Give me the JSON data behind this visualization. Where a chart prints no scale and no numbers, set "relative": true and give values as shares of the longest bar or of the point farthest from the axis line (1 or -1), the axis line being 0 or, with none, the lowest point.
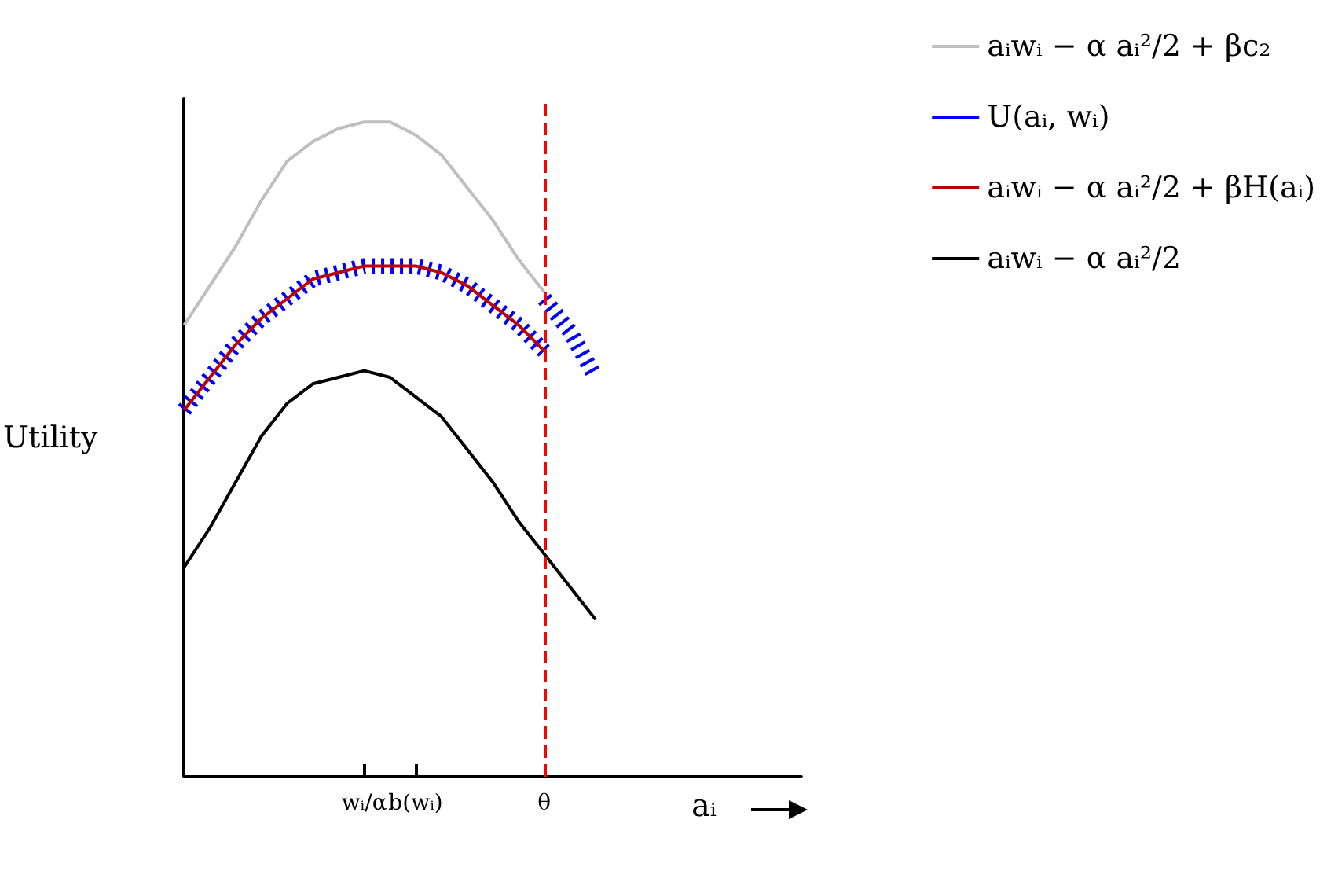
{
  "chart_data": {
    "type": "line",
    "relative": true,
    "ylabel": "Utility",
    "xlabel": "aᵢ",
    "categories": [
      null,
      null,
      null,
      null,
      null,
      null,
      null,
      "wᵢ/α",
      null,
      "b(wᵢ)",
      null,
      null,
      null,
      null,
      "θ",
      null,
      null,
      null,
      null,
      null,
      null,
      null,
      null,
      null,
      null
    ],
    "series": [
      {
        "name": "aᵢwᵢ − α aᵢ²/2 + βc₂",
        "color": "#bfbfbf",
        "values": [
          0.69,
          0.75,
          0.81,
          0.88,
          0.94,
          0.97,
          0.99,
          1,
          1,
          0.98,
          0.95,
          0.9,
          0.85,
          0.79,
          0.74,
          null,
          null,
          null,
          null,
          null,
          null,
          null,
          null,
          null,
          null
        ]
      },
      {
        "name": "U(aᵢ, wᵢ)",
        "color": "#0000ff",
        "line_style": "dashed",
        "values": [
          0.56,
          0.61,
          0.66,
          0.7,
          0.73,
          0.76,
          0.77,
          0.78,
          0.78,
          0.78,
          0.77,
          0.75,
          0.72,
          0.69,
          0.65,
          null,
          null,
          null,
          null,
          null,
          null,
          null,
          null,
          null,
          null
        ]
      },
      {
        "color": "#0000ff",
        "line_style": "dashed",
        "values": [
          null,
          null,
          null,
          null,
          null,
          null,
          null,
          null,
          null,
          null,
          null,
          null,
          null,
          null,
          0.73,
          0.68,
          0.61,
          null,
          null,
          null,
          null,
          null,
          null,
          null,
          null
        ]
      },
      {
        "name": "aᵢwᵢ − α aᵢ²/2 + βH(aᵢ)",
        "color": "#c00000",
        "values": [
          0.56,
          0.61,
          0.66,
          0.7,
          0.73,
          0.76,
          0.77,
          0.78,
          0.78,
          0.78,
          0.77,
          0.75,
          0.72,
          0.69,
          0.65,
          null,
          null,
          null,
          null,
          null,
          null,
          null,
          null,
          null,
          null
        ]
      },
      {
        "name": "aᵢwᵢ − α aᵢ²/2",
        "color": "#000000",
        "values": [
          0.32,
          0.38,
          0.45,
          0.52,
          0.57,
          0.6,
          0.61,
          0.62,
          0.61,
          0.58,
          0.55,
          0.5,
          0.45,
          0.39,
          0.34,
          0.29,
          0.24,
          null,
          null,
          null,
          null,
          null,
          null,
          null,
          null
        ]
      }
    ],
    "ref_lines": [
      {
        "axis": "x",
        "value": "θ",
        "color": "#ff0000",
        "line_style": "dashed"
      }
    ],
    "legend": "top right",
    "grid": false,
    "marker": "none"
  }
}
